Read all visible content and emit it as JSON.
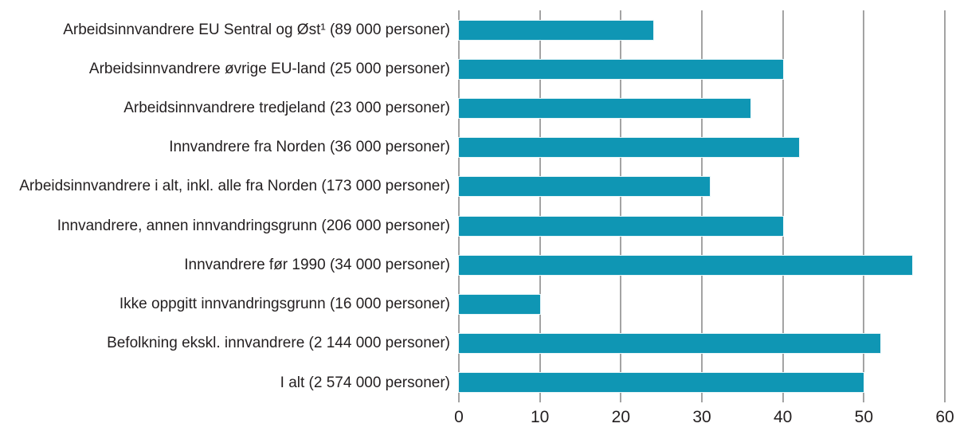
{
  "chart_data": {
    "type": "bar",
    "orientation": "horizontal",
    "title": "",
    "xlabel": "",
    "ylabel": "",
    "xlim": [
      0,
      60
    ],
    "x_ticks": [
      "0",
      "10",
      "20",
      "30",
      "40",
      "50",
      "60"
    ],
    "grid": true,
    "legend": false,
    "bar_color": "#0f96b4",
    "gridline_color": "#a3a3a3",
    "text_color": "#231f20",
    "categories": [
      "Arbeidsinnvandrere EU Sentral og Øst¹ (89 000 personer)",
      "Arbeidsinnvandrere øvrige EU-land (25 000 personer)",
      "Arbeidsinnvandrere tredjeland (23 000 personer)",
      "Innvandrere fra Norden (36 000 personer)",
      "Arbeidsinnvandrere i alt, inkl. alle fra Norden (173 000 personer)",
      "Innvandrere, annen innvandringsgrunn (206 000 personer)",
      "Innvandrere før 1990 (34 000 personer)",
      "Ikke oppgitt innvandringsgrunn (16 000 personer)",
      "Befolkning ekskl. innvandrere (2 144 000 personer)",
      "I alt (2 574 000 personer)"
    ],
    "values": [
      24,
      40,
      36,
      42,
      31,
      40,
      56,
      10,
      52,
      50
    ]
  }
}
